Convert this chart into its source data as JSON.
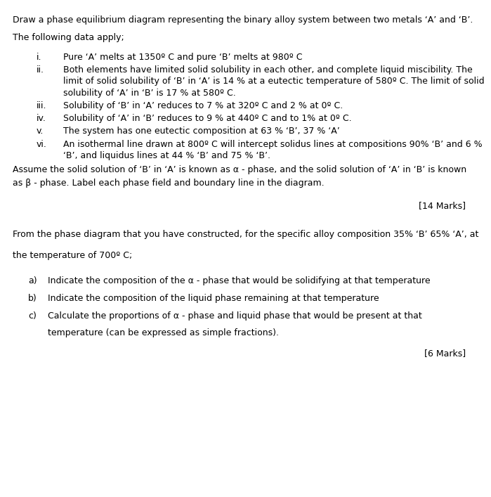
{
  "title_line": "Draw a phase equilibrium diagram representing the binary alloy system between two metals ‘A’ and ‘B’.",
  "intro_line": "The following data apply;",
  "items": [
    {
      "label": "i.",
      "text": "Pure ‘A’ melts at 1350º C and pure ‘B’ melts at 980º C"
    },
    {
      "label": "ii.",
      "lines": [
        "Both elements have limited solid solubility in each other, and complete liquid miscibility. The",
        "limit of solid solubility of ‘B’ in ‘A’ is 14 % at a eutectic temperature of 580º C. The limit of solid",
        "solubility of ‘A’ in ‘B’ is 17 % at 580º C."
      ]
    },
    {
      "label": "iii.",
      "text": "Solubility of ‘B’ in ‘A’ reduces to 7 % at 320º C and 2 % at 0º C."
    },
    {
      "label": "iv.",
      "text": "Solubility of ‘A’ in ‘B’ reduces to 9 % at 440º C and to 1% at 0º C."
    },
    {
      "label": "v.",
      "text": "The system has one eutectic composition at 63 % ‘B’, 37 % ‘A’"
    },
    {
      "label": "vi.",
      "lines": [
        "An isothermal line drawn at 800º C will intercept solidus lines at compositions 90% ‘B’ and 6 %",
        "‘B’, and liquidus lines at 44 % ‘B’ and 75 % ‘B’."
      ]
    }
  ],
  "para1_lines": [
    "Assume the solid solution of ‘B’ in ‘A’ is known as α - phase, and the solid solution of ‘A’ in ‘B’ is known",
    "as β - phase. Label each phase field and boundary line in the diagram."
  ],
  "marks1": "[14 Marks]",
  "para2_line1": "From the phase diagram that you have constructed, for the specific alloy composition 35% ‘B’ 65% ‘A’, at",
  "para2_line2": "the temperature of 700º C;",
  "sub_items": [
    {
      "label": "a)",
      "text": "Indicate the composition of the α - phase that would be solidifying at that temperature"
    },
    {
      "label": "b)",
      "text": "Indicate the composition of the liquid phase remaining at that temperature"
    },
    {
      "label": "c)",
      "lines": [
        "Calculate the proportions of α - phase and liquid phase that would be present at that",
        "temperature (can be expressed as simple fractions)."
      ]
    }
  ],
  "marks2": "[6 Marks]",
  "bg_color": "#ffffff",
  "text_color": "#000000",
  "font_size": 9.0
}
